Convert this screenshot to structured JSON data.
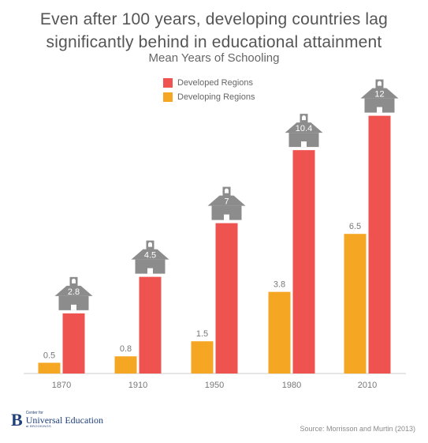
{
  "title_line1": "Even after 100 years, developing countries lag",
  "title_line2": "significantly behind in educational attainment",
  "subtitle": "Mean Years of Schooling",
  "colors": {
    "developed": "#ef5350",
    "developing": "#f5a623",
    "school": "#8c8c8c",
    "axis": "#cccccc"
  },
  "chart_data": {
    "type": "bar",
    "categories": [
      "1870",
      "1910",
      "1950",
      "1980",
      "2010"
    ],
    "series": [
      {
        "name": "Developed Regions",
        "values": [
          2.8,
          4.5,
          7,
          10.4,
          12
        ],
        "value_labels": [
          "2.8",
          "4.5",
          "7",
          "10.4",
          "12"
        ]
      },
      {
        "name": "Developing Regions",
        "values": [
          0.5,
          0.8,
          1.5,
          3.8,
          6.5
        ],
        "value_labels": [
          "0.5",
          "0.8",
          "1.5",
          "3.8",
          "6.5"
        ]
      }
    ],
    "ylim": [
      0,
      12
    ],
    "legend": "top-center"
  },
  "footer": {
    "logo_letter": "B",
    "logo_small": "Center for",
    "logo_main": "Universal Education",
    "logo_sub": "at BROOKINGS",
    "source": "Source: Morrisson and Murtin (2013)"
  }
}
